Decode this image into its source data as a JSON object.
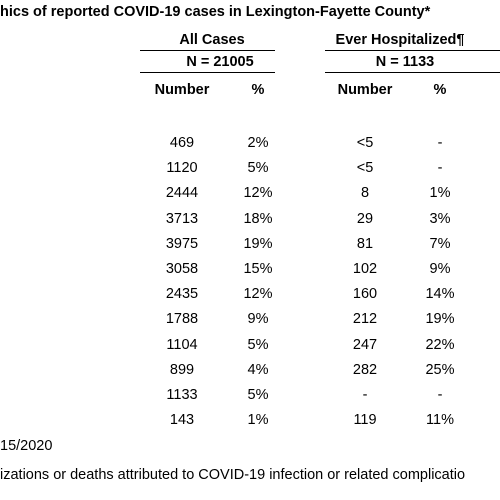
{
  "title": "hics of reported COVID-19 cases in Lexington-Fayette County*",
  "table": {
    "groups": [
      "All Cases",
      "Ever Hospitalized¶"
    ],
    "totals": [
      "N = 21005",
      "N = 1133"
    ],
    "columns": [
      "Number",
      "%",
      "Number",
      "%"
    ],
    "rows": [
      [
        "469",
        "2%",
        "<5",
        "-"
      ],
      [
        "1120",
        "5%",
        "<5",
        "-"
      ],
      [
        "2444",
        "12%",
        "8",
        "1%"
      ],
      [
        "3713",
        "18%",
        "29",
        "3%"
      ],
      [
        "3975",
        "19%",
        "81",
        "7%"
      ],
      [
        "3058",
        "15%",
        "102",
        "9%"
      ],
      [
        "2435",
        "12%",
        "160",
        "14%"
      ],
      [
        "1788",
        "9%",
        "212",
        "19%"
      ],
      [
        "1104",
        "5%",
        "247",
        "22%"
      ],
      [
        "899",
        "4%",
        "282",
        "25%"
      ],
      [
        "1133",
        "5%",
        "-",
        "-"
      ],
      [
        "143",
        "1%",
        "119",
        "11%"
      ]
    ]
  },
  "footer": [
    "15/2020",
    "izations or deaths attributed to COVID-19 infection or related complicatio"
  ]
}
